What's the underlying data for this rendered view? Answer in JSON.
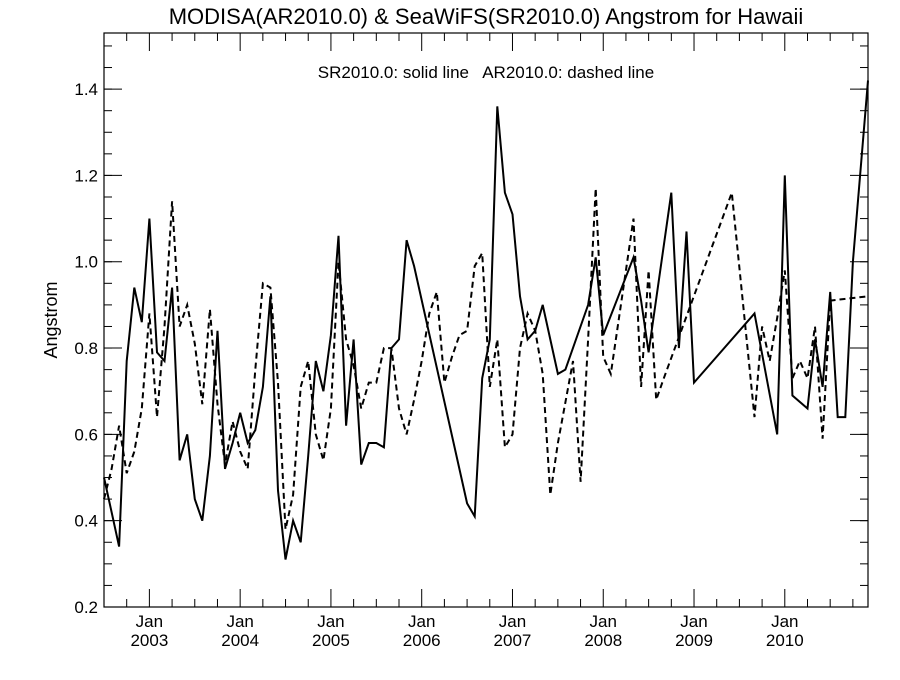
{
  "chart_data": {
    "type": "line",
    "title": "MODISA(AR2010.0) & SeaWiFS(SR2010.0)  Angstrom for Hawaii",
    "annotation": "SR2010.0: solid line   AR2010.0: dashed line",
    "xlabel": "",
    "ylabel": "Angstrom",
    "xlim": [
      "2002-07-01",
      "2010-12-01"
    ],
    "ylim": [
      0.2,
      1.53
    ],
    "x_ticks": [
      {
        "date": "2003-01-01",
        "label": "Jan",
        "year": "2003"
      },
      {
        "date": "2004-01-01",
        "label": "Jan",
        "year": "2004"
      },
      {
        "date": "2005-01-01",
        "label": "Jan",
        "year": "2005"
      },
      {
        "date": "2006-01-01",
        "label": "Jan",
        "year": "2006"
      },
      {
        "date": "2007-01-01",
        "label": "Jan",
        "year": "2007"
      },
      {
        "date": "2008-01-01",
        "label": "Jan",
        "year": "2008"
      },
      {
        "date": "2009-01-01",
        "label": "Jan",
        "year": "2009"
      },
      {
        "date": "2010-01-01",
        "label": "Jan",
        "year": "2010"
      }
    ],
    "y_ticks": [
      "0.2",
      "0.4",
      "0.6",
      "0.8",
      "1.0",
      "1.2",
      "1.4"
    ],
    "grid": false,
    "legend": "none",
    "series": [
      {
        "style": "solid",
        "color": "#000000",
        "points": [
          [
            "2002-07-01",
            0.5
          ],
          [
            "2002-08-01",
            0.42
          ],
          [
            "2002-09-01",
            0.34
          ],
          [
            "2002-10-01",
            0.77
          ],
          [
            "2002-11-01",
            0.94
          ],
          [
            "2002-12-01",
            0.86
          ],
          [
            "2003-01-01",
            1.1
          ],
          [
            "2003-02-01",
            0.79
          ],
          [
            "2003-03-01",
            0.77
          ],
          [
            "2003-04-01",
            0.94
          ],
          [
            "2003-05-01",
            0.54
          ],
          [
            "2003-06-01",
            0.6
          ],
          [
            "2003-07-01",
            0.45
          ],
          [
            "2003-08-01",
            0.4
          ],
          [
            "2003-09-01",
            0.55
          ],
          [
            "2003-10-01",
            0.84
          ],
          [
            "2003-11-01",
            0.52
          ],
          [
            "2003-12-01",
            0.58
          ],
          [
            "2004-01-01",
            0.65
          ],
          [
            "2004-02-01",
            0.58
          ],
          [
            "2004-03-01",
            0.61
          ],
          [
            "2004-04-01",
            0.71
          ],
          [
            "2004-05-01",
            0.92
          ],
          [
            "2004-06-01",
            0.47
          ],
          [
            "2004-07-01",
            0.31
          ],
          [
            "2004-08-01",
            0.4
          ],
          [
            "2004-09-01",
            0.35
          ],
          [
            "2004-10-01",
            0.55
          ],
          [
            "2004-11-01",
            0.77
          ],
          [
            "2004-12-01",
            0.7
          ],
          [
            "2005-01-01",
            0.83
          ],
          [
            "2005-02-01",
            1.06
          ],
          [
            "2005-03-01",
            0.62
          ],
          [
            "2005-04-01",
            0.82
          ],
          [
            "2005-05-01",
            0.53
          ],
          [
            "2005-06-01",
            0.58
          ],
          [
            "2005-07-01",
            0.58
          ],
          [
            "2005-08-01",
            0.57
          ],
          [
            "2005-09-01",
            0.8
          ],
          [
            "2005-10-01",
            0.82
          ],
          [
            "2005-11-01",
            1.05
          ],
          [
            "2005-12-01",
            0.99
          ],
          [
            "2006-07-01",
            0.44
          ],
          [
            "2006-08-01",
            0.41
          ],
          [
            "2006-09-01",
            0.73
          ],
          [
            "2006-10-01",
            0.82
          ],
          [
            "2006-11-01",
            1.36
          ],
          [
            "2006-12-01",
            1.16
          ],
          [
            "2007-01-01",
            1.11
          ],
          [
            "2007-02-01",
            0.92
          ],
          [
            "2007-03-01",
            0.82
          ],
          [
            "2007-04-01",
            0.84
          ],
          [
            "2007-05-01",
            0.9
          ],
          [
            "2007-07-01",
            0.74
          ],
          [
            "2007-08-01",
            0.75
          ],
          [
            "2007-11-01",
            0.9
          ],
          [
            "2007-12-01",
            1.01
          ],
          [
            "2008-01-01",
            0.83
          ],
          [
            "2008-05-01",
            1.01
          ],
          [
            "2008-06-01",
            0.91
          ],
          [
            "2008-07-01",
            0.79
          ],
          [
            "2008-10-01",
            1.16
          ],
          [
            "2008-11-01",
            0.8
          ],
          [
            "2008-12-01",
            1.07
          ],
          [
            "2009-01-01",
            0.72
          ],
          [
            "2009-09-01",
            0.88
          ],
          [
            "2009-12-01",
            0.6
          ],
          [
            "2010-01-01",
            1.2
          ],
          [
            "2010-02-01",
            0.69
          ],
          [
            "2010-04-01",
            0.66
          ],
          [
            "2010-05-01",
            0.82
          ],
          [
            "2010-06-01",
            0.71
          ],
          [
            "2010-07-01",
            0.93
          ],
          [
            "2010-08-01",
            0.64
          ],
          [
            "2010-09-01",
            0.64
          ],
          [
            "2010-10-01",
            1.0
          ],
          [
            "2010-12-01",
            1.42
          ]
        ]
      },
      {
        "style": "dashed",
        "color": "#000000",
        "points": [
          [
            "2002-07-01",
            0.45
          ],
          [
            "2002-08-01",
            0.52
          ],
          [
            "2002-09-01",
            0.62
          ],
          [
            "2002-10-01",
            0.51
          ],
          [
            "2002-11-01",
            0.56
          ],
          [
            "2002-12-01",
            0.66
          ],
          [
            "2003-01-01",
            0.88
          ],
          [
            "2003-02-01",
            0.64
          ],
          [
            "2003-03-01",
            0.85
          ],
          [
            "2003-04-01",
            1.14
          ],
          [
            "2003-05-01",
            0.85
          ],
          [
            "2003-06-01",
            0.9
          ],
          [
            "2003-07-01",
            0.81
          ],
          [
            "2003-08-01",
            0.67
          ],
          [
            "2003-09-01",
            0.89
          ],
          [
            "2003-10-01",
            0.67
          ],
          [
            "2003-11-01",
            0.53
          ],
          [
            "2003-12-01",
            0.63
          ],
          [
            "2004-01-01",
            0.56
          ],
          [
            "2004-02-01",
            0.52
          ],
          [
            "2004-03-01",
            0.75
          ],
          [
            "2004-04-01",
            0.95
          ],
          [
            "2004-05-01",
            0.94
          ],
          [
            "2004-06-01",
            0.72
          ],
          [
            "2004-07-01",
            0.38
          ],
          [
            "2004-08-01",
            0.46
          ],
          [
            "2004-09-01",
            0.71
          ],
          [
            "2004-10-01",
            0.77
          ],
          [
            "2004-11-01",
            0.6
          ],
          [
            "2004-12-01",
            0.54
          ],
          [
            "2005-01-01",
            0.66
          ],
          [
            "2005-02-01",
            1.0
          ],
          [
            "2005-03-01",
            0.82
          ],
          [
            "2005-04-01",
            0.76
          ],
          [
            "2005-05-01",
            0.66
          ],
          [
            "2005-06-01",
            0.72
          ],
          [
            "2005-07-01",
            0.72
          ],
          [
            "2005-08-01",
            0.8
          ],
          [
            "2005-09-01",
            0.8
          ],
          [
            "2005-10-01",
            0.66
          ],
          [
            "2005-11-01",
            0.6
          ],
          [
            "2005-12-01",
            0.68
          ],
          [
            "2006-01-01",
            0.77
          ],
          [
            "2006-02-01",
            0.88
          ],
          [
            "2006-03-01",
            0.93
          ],
          [
            "2006-04-01",
            0.72
          ],
          [
            "2006-05-01",
            0.78
          ],
          [
            "2006-06-01",
            0.83
          ],
          [
            "2006-07-01",
            0.84
          ],
          [
            "2006-08-01",
            0.99
          ],
          [
            "2006-09-01",
            1.02
          ],
          [
            "2006-10-01",
            0.71
          ],
          [
            "2006-11-01",
            0.82
          ],
          [
            "2006-12-01",
            0.57
          ],
          [
            "2007-01-01",
            0.6
          ],
          [
            "2007-02-01",
            0.8
          ],
          [
            "2007-03-01",
            0.88
          ],
          [
            "2007-04-01",
            0.84
          ],
          [
            "2007-05-01",
            0.74
          ],
          [
            "2007-06-01",
            0.46
          ],
          [
            "2007-07-01",
            0.58
          ],
          [
            "2007-09-01",
            0.77
          ],
          [
            "2007-10-01",
            0.49
          ],
          [
            "2007-11-01",
            0.82
          ],
          [
            "2007-12-01",
            1.17
          ],
          [
            "2008-01-01",
            0.78
          ],
          [
            "2008-02-01",
            0.74
          ],
          [
            "2008-05-01",
            1.1
          ],
          [
            "2008-06-01",
            0.71
          ],
          [
            "2008-07-01",
            0.98
          ],
          [
            "2008-08-01",
            0.68
          ],
          [
            "2008-09-01",
            0.73
          ],
          [
            "2009-06-01",
            1.16
          ],
          [
            "2009-09-01",
            0.64
          ],
          [
            "2009-10-01",
            0.85
          ],
          [
            "2009-11-01",
            0.77
          ],
          [
            "2009-12-01",
            0.87
          ],
          [
            "2010-01-01",
            0.98
          ],
          [
            "2010-02-01",
            0.73
          ],
          [
            "2010-03-01",
            0.77
          ],
          [
            "2010-04-01",
            0.73
          ],
          [
            "2010-05-01",
            0.85
          ],
          [
            "2010-06-01",
            0.59
          ],
          [
            "2010-07-01",
            0.91
          ],
          [
            "2010-12-01",
            0.92
          ]
        ]
      }
    ]
  }
}
